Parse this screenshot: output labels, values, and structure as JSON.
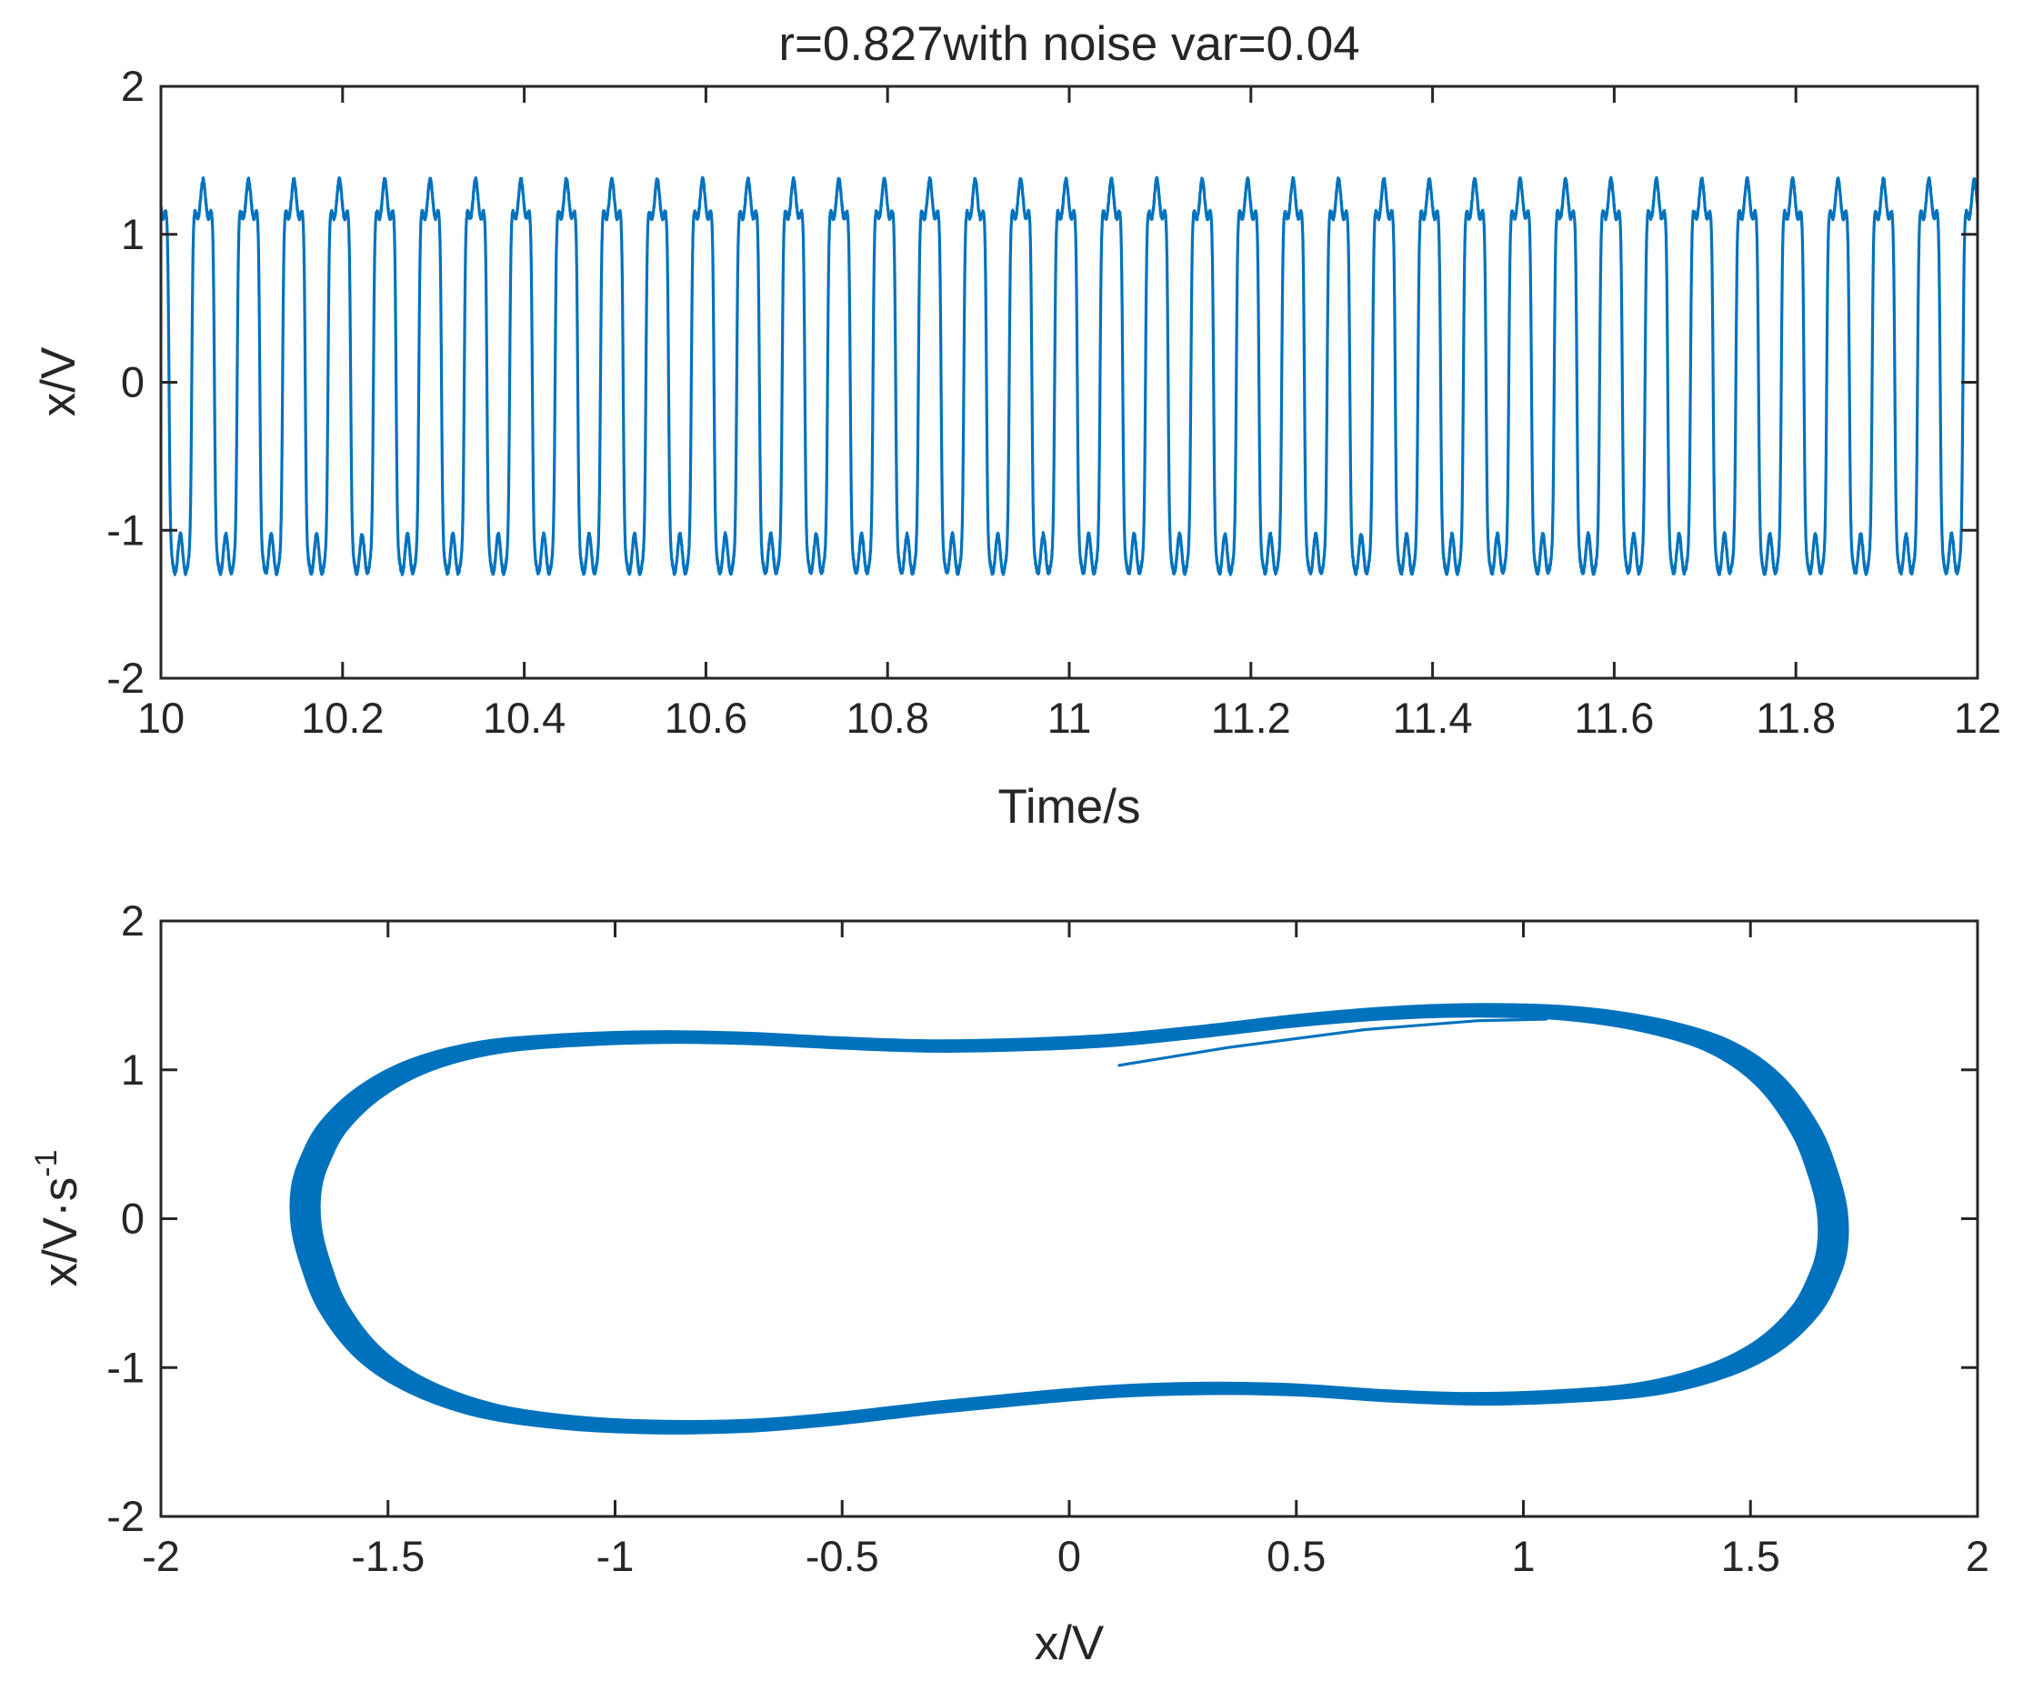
{
  "chart_data": [
    {
      "type": "line",
      "title": "r=0.827with noise var=0.04",
      "xlabel": "Time/s",
      "ylabel": "x/V",
      "xlim": [
        10,
        12
      ],
      "ylim": [
        -2,
        2
      ],
      "xticks": [
        10,
        10.2,
        10.4,
        10.6,
        10.8,
        11,
        11.2,
        11.4,
        11.6,
        11.8,
        12
      ],
      "xtick_labels": [
        "10",
        "10.2",
        "10.4",
        "10.6",
        "10.8",
        "11",
        "11.2",
        "11.4",
        "11.6",
        "11.8",
        "12"
      ],
      "yticks": [
        -2,
        -1,
        0,
        1,
        2
      ],
      "ytick_labels": [
        "-2",
        "-1",
        "0",
        "1",
        "2"
      ],
      "grid": false,
      "color": "#0072BD",
      "series": [
        {
          "signal": {
            "t_start": 10,
            "t_end": 12,
            "cycles_in_window": 40,
            "upper_plateau": 1.2,
            "upper_peak": 1.4,
            "lower_plateau": -1.2,
            "lower_peak": -1.4,
            "value_at_t_start": 1.2,
            "value_at_t_end": 1.2
          }
        }
      ]
    },
    {
      "type": "line",
      "title": "",
      "xlabel": "x/V",
      "ylabel": "x/V·s",
      "ylabel_superscript": "-1",
      "xlim": [
        -2,
        2
      ],
      "ylim": [
        -2,
        2
      ],
      "xticks": [
        -2,
        -1.5,
        -1,
        -0.5,
        0,
        0.5,
        1,
        1.5,
        2
      ],
      "xtick_labels": [
        "-2",
        "-1.5",
        "-1",
        "-0.5",
        "0",
        "0.5",
        "1",
        "1.5",
        "2"
      ],
      "yticks": [
        -2,
        -1,
        0,
        1,
        2
      ],
      "ytick_labels": [
        "-2",
        "-1",
        "0",
        "1",
        "2"
      ],
      "grid": false,
      "color": "#0072BD",
      "series": [
        {
          "limit_cycle": {
            "x": [
              0.1,
              0.3,
              0.5,
              0.7,
              0.9,
              1.1,
              1.28,
              1.43,
              1.54,
              1.62,
              1.66,
              1.68,
              1.68,
              1.66,
              1.62,
              1.54,
              1.43,
              1.28,
              1.1,
              0.9,
              0.7,
              0.5,
              0.3,
              0.1,
              -0.1,
              -0.3,
              -0.5,
              -0.7,
              -0.9,
              -1.1,
              -1.28,
              -1.43,
              -1.54,
              -1.62,
              -1.66,
              -1.68,
              -1.68,
              -1.66,
              -1.62,
              -1.54,
              -1.43,
              -1.28,
              -1.1,
              -0.9,
              -0.7,
              -0.5,
              -0.3,
              -0.1
            ],
            "y": [
              1.2,
              1.26,
              1.33,
              1.38,
              1.4,
              1.38,
              1.3,
              1.16,
              0.93,
              0.6,
              0.3,
              0.05,
              -0.2,
              -0.4,
              -0.62,
              -0.85,
              -1.02,
              -1.14,
              -1.19,
              -1.21,
              -1.19,
              -1.15,
              -1.14,
              -1.16,
              -1.21,
              -1.27,
              -1.34,
              -1.39,
              -1.4,
              -1.37,
              -1.29,
              -1.13,
              -0.91,
              -0.6,
              -0.3,
              -0.05,
              0.2,
              0.4,
              0.62,
              0.85,
              1.03,
              1.15,
              1.2,
              1.22,
              1.21,
              1.18,
              1.16,
              1.17
            ],
            "closed": true,
            "band_thickness": 0.06
          },
          "transient": {
            "x": [
              0.11,
              0.35,
              0.65,
              0.9,
              1.05
            ],
            "y": [
              1.03,
              1.15,
              1.27,
              1.33,
              1.34
            ]
          }
        }
      ]
    }
  ]
}
